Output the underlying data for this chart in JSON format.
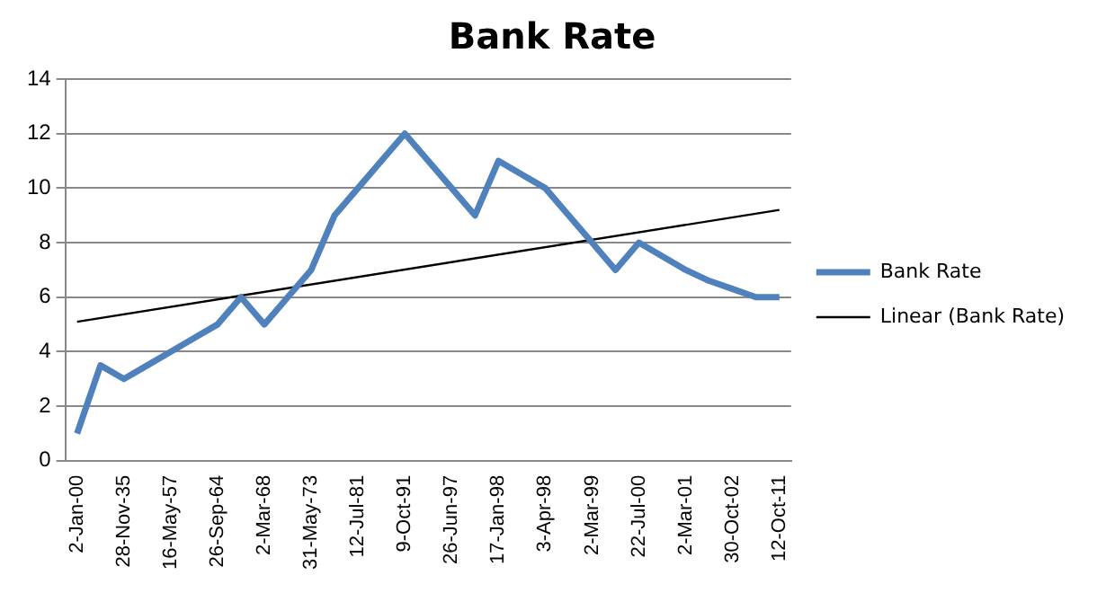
{
  "chart_data": {
    "type": "line",
    "title": "Bank Rate",
    "categories": [
      "2-Jan-00",
      null,
      "28-Nov-35",
      null,
      "16-May-57",
      null,
      "26-Sep-64",
      null,
      "2-Mar-68",
      null,
      "31-May-73",
      null,
      "12-Jul-81",
      null,
      "9-Oct-91",
      null,
      "26-Jun-97",
      null,
      "17-Jan-98",
      null,
      "3-Apr-98",
      null,
      "2-Mar-99",
      null,
      "22-Jul-00",
      null,
      "2-Mar-01",
      null,
      "30-Oct-02",
      null,
      "12-Oct-11"
    ],
    "series": [
      {
        "name": "Bank Rate",
        "color": "#4f81bd",
        "values": [
          1,
          3.5,
          3,
          3.5,
          4,
          4.5,
          5,
          6,
          5,
          6,
          7,
          9,
          10,
          11,
          12,
          11,
          10,
          9,
          11,
          10.5,
          10,
          9,
          8,
          7,
          8,
          7.5,
          7,
          6.6,
          6.3,
          6,
          6
        ]
      },
      {
        "name": "Linear (Bank Rate)",
        "color": "#000000",
        "values": [
          5.1,
          null,
          null,
          null,
          null,
          null,
          null,
          null,
          null,
          null,
          null,
          null,
          null,
          null,
          null,
          null,
          null,
          null,
          null,
          null,
          null,
          null,
          null,
          null,
          null,
          null,
          null,
          null,
          null,
          null,
          9.2
        ]
      }
    ],
    "ylim": [
      0,
      14
    ],
    "yticks": [
      0,
      2,
      4,
      6,
      8,
      10,
      12,
      14
    ],
    "grid": "y",
    "legend": "right",
    "marker": "none"
  }
}
